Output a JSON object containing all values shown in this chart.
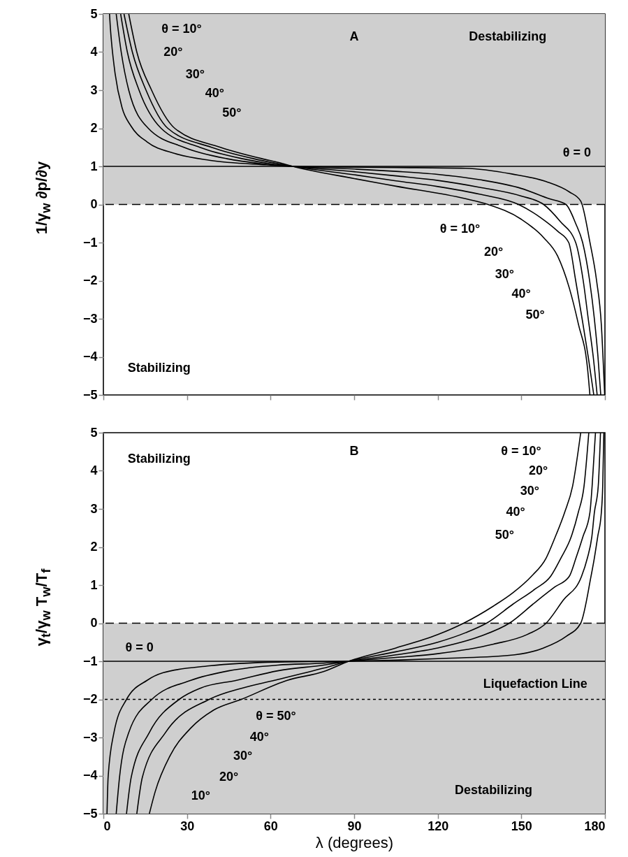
{
  "chart_data": [
    {
      "type": "line",
      "ylabel": "1/γ$_{w}$ ∂p/∂y",
      "xlim": [
        0,
        180
      ],
      "xticks": [
        0,
        30,
        60,
        90,
        120,
        150,
        180
      ],
      "ylim": [
        -5,
        5
      ],
      "yticks": [
        -5,
        -4,
        -3,
        -2,
        -1,
        0,
        1,
        2,
        3,
        4,
        5
      ],
      "tick_labels": "y",
      "bands": [
        {
          "axis": "y",
          "from": 0,
          "to": 5,
          "color": "#cfcfcf"
        }
      ],
      "ref_lines": [
        {
          "axis": "y",
          "value": 1,
          "line_style": "solid",
          "color": "#000000"
        },
        {
          "axis": "y",
          "value": 0,
          "line_style": "dashed",
          "color": "#000000"
        }
      ],
      "series": [
        {
          "color": "#000000",
          "x": [
            2.2,
            2.5,
            2.9,
            4.2,
            6.7,
            9.9,
            15.7,
            25.6,
            38,
            58.5,
            68,
            90,
            105,
            130,
            146.6,
            158.9,
            167.2,
            171.3,
            174.6,
            177,
            178.7,
            179.9
          ],
          "values": [
            5,
            4.64,
            4.28,
            3.44,
            2.54,
            2.06,
            1.64,
            1.34,
            1.16,
            1.04,
            1,
            0.98,
            0.97,
            0.95,
            0.8,
            0.6,
            0.33,
            0.09,
            -0.99,
            -2,
            -3.15,
            -5
          ]
        },
        {
          "color": "#000000",
          "x": [
            4.6,
            6.4,
            9.1,
            16.1,
            28.9,
            44.4,
            57,
            68,
            90,
            105,
            120,
            135,
            150,
            160,
            166,
            169.5,
            172,
            174.5,
            176.2,
            177.5,
            178.5
          ],
          "values": [
            5,
            4,
            3,
            2,
            1.5,
            1.2,
            1.07,
            1,
            0.93,
            0.87,
            0.79,
            0.65,
            0.42,
            0.15,
            0,
            -0.5,
            -1,
            -2,
            -3,
            -4,
            -5
          ]
        },
        {
          "color": "#000000",
          "x": [
            6.2,
            8.6,
            12.8,
            20.7,
            34.6,
            50,
            60,
            68,
            90,
            105,
            120,
            135,
            150,
            158,
            164,
            169.5,
            172.2,
            174,
            175.8,
            177.2
          ],
          "values": [
            5,
            4,
            3,
            2,
            1.5,
            1.2,
            1.07,
            1,
            0.86,
            0.75,
            0.63,
            0.45,
            0.22,
            0,
            -0.45,
            -1,
            -2,
            -3,
            -4,
            -5
          ]
        },
        {
          "color": "#000000",
          "x": [
            7.4,
            10.4,
            15.3,
            23.1,
            38.8,
            54,
            62,
            68,
            90,
            105,
            120,
            135,
            149,
            157,
            163,
            167,
            169.5,
            171.8,
            174,
            176
          ],
          "values": [
            5,
            4,
            3,
            2,
            1.5,
            1.2,
            1.08,
            1,
            0.78,
            0.62,
            0.47,
            0.27,
            0,
            -0.35,
            -0.7,
            -1,
            -2,
            -3,
            -4,
            -5
          ]
        },
        {
          "color": "#000000",
          "x": [
            9.1,
            12,
            17.3,
            25.6,
            42,
            57,
            63,
            68,
            90,
            105,
            130,
            138,
            150,
            158,
            163,
            167.2,
            170.5,
            173.8,
            174.6
          ],
          "values": [
            5,
            4,
            3,
            2,
            1.5,
            1.2,
            1.1,
            1,
            0.68,
            0.48,
            0.15,
            0,
            -0.39,
            -0.87,
            -1.35,
            -2.19,
            -3.15,
            -4.34,
            -5
          ]
        }
      ],
      "annotations": [
        "A",
        "Destabilizing",
        "θ = 0",
        "Stabilizing",
        "θ = 10°",
        "20°",
        "30°",
        "40°",
        "50°",
        "θ = 10°",
        "20°",
        "30°",
        "40°",
        "50°"
      ]
    },
    {
      "type": "line",
      "xlabel": "λ (degrees)",
      "ylabel": "γ$_{t}$/γ$_{w}$ T$_{w}$/T$_{f}$",
      "xlim": [
        0,
        180
      ],
      "xticks": [
        0,
        30,
        60,
        90,
        120,
        150,
        180
      ],
      "ylim": [
        -5,
        5
      ],
      "yticks": [
        -5,
        -4,
        -3,
        -2,
        -1,
        0,
        1,
        2,
        3,
        4,
        5
      ],
      "bands": [
        {
          "axis": "y",
          "from": -5,
          "to": 0,
          "color": "#cfcfcf"
        }
      ],
      "ref_lines": [
        {
          "axis": "y",
          "value": -1,
          "line_style": "solid",
          "color": "#000000"
        },
        {
          "axis": "y",
          "value": 0,
          "line_style": "dashed",
          "color": "#000000"
        },
        {
          "axis": "y",
          "value": -2,
          "line_style": "dotted",
          "color": "#000000"
        }
      ],
      "series": [
        {
          "color": "#000000",
          "x": [
            1.3,
            1.7,
            3.8,
            8.3,
            15.7,
            21.5,
            38,
            62.6,
            88,
            105,
            120,
            145,
            158,
            166,
            171.3,
            175,
            176.2,
            177.4,
            178.7,
            179.2,
            179.6
          ],
          "values": [
            -5,
            -4.04,
            -2.87,
            -2,
            -1.5,
            -1.3,
            -1.12,
            -1.02,
            -1,
            -0.97,
            -0.93,
            -0.85,
            -0.65,
            -0.35,
            0,
            1.23,
            1.71,
            2.27,
            2.9,
            3.6,
            5
          ]
        },
        {
          "color": "#000000",
          "x": [
            4.6,
            5.8,
            9.1,
            17.4,
            31.4,
            45,
            62.6,
            79,
            88,
            105,
            120,
            140,
            152,
            158.9,
            165,
            171.6,
            173.7,
            175.3,
            176.2,
            177.6,
            178.4
          ],
          "values": [
            -5,
            -4.04,
            -2.87,
            -2,
            -1.5,
            -1.25,
            -1.1,
            -1.05,
            -1,
            -0.9,
            -0.8,
            -0.55,
            -0.3,
            0,
            0.6,
            1.23,
            1.71,
            2.27,
            2.9,
            3.6,
            5
          ]
        },
        {
          "color": "#000000",
          "x": [
            8.3,
            10,
            16.5,
            27.2,
            35,
            47.8,
            62.6,
            79,
            88,
            105,
            120,
            135,
            145.7,
            155,
            162,
            167.2,
            169.6,
            172.1,
            174.6,
            175.4,
            176.6
          ],
          "values": [
            -5,
            -4.04,
            -2.87,
            -2,
            -1.7,
            -1.5,
            -1.25,
            -1.1,
            -1,
            -0.83,
            -0.65,
            -0.35,
            0,
            0.55,
            0.95,
            1.23,
            1.71,
            2.27,
            2.9,
            3.6,
            5
          ]
        },
        {
          "color": "#000000",
          "x": [
            12,
            14,
            22.3,
            38,
            50,
            61.4,
            79,
            88,
            105,
            120,
            130,
            137.5,
            147,
            155,
            160.5,
            164.2,
            167.9,
            170.4,
            172.5,
            174.2
          ],
          "values": [
            -5,
            -4.04,
            -2.87,
            -2,
            -1.7,
            -1.5,
            -1.18,
            -1,
            -0.75,
            -0.5,
            -0.25,
            0,
            0.5,
            0.9,
            1.23,
            1.71,
            2.27,
            2.9,
            3.6,
            5
          ]
        },
        {
          "color": "#000000",
          "x": [
            16.5,
            18.6,
            24,
            31.4,
            39.6,
            49.5,
            66,
            79,
            88,
            105,
            120,
            129.3,
            140,
            147,
            153.6,
            158.9,
            162.2,
            165.5,
            168.4,
            171.3
          ],
          "values": [
            -5,
            -4.42,
            -3.47,
            -2.75,
            -2.28,
            -2,
            -1.5,
            -1.27,
            -1,
            -0.65,
            -0.3,
            0,
            0.45,
            0.8,
            1.23,
            1.71,
            2.27,
            2.9,
            3.6,
            5
          ]
        }
      ],
      "annotations": [
        "B",
        "Stabilizing",
        "θ = 10°",
        "20°",
        "30°",
        "40°",
        "50°",
        "θ = 0",
        "Liquefaction Line",
        "θ = 50°",
        "40°",
        "30°",
        "20°",
        "10°",
        "Destabilizing"
      ]
    }
  ]
}
